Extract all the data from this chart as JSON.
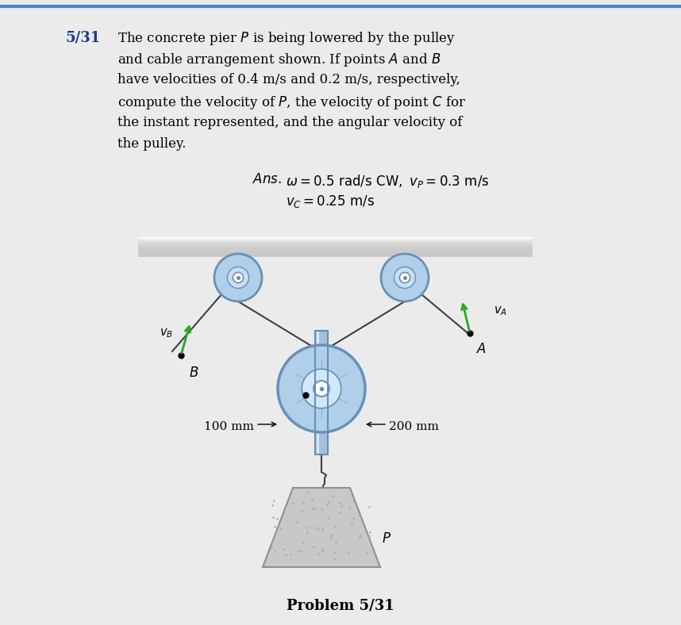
{
  "bg_color": "#ebebeb",
  "white": "#ffffff",
  "text_color": "#000000",
  "blue_num_color": "#1a3a8a",
  "pulley_blue": "#b0cfe8",
  "pulley_blue_mid": "#c8dff2",
  "pulley_rim": "#6890b8",
  "support_color": "#d0dde8",
  "support_rim": "#a0b0c0",
  "shaft_color": "#a8c0d8",
  "shaft_hi": "#d8eaf8",
  "cable_color": "#404040",
  "arrow_color": "#22aa22",
  "pier_fill": "#c8c8c8",
  "pier_edge": "#909090",
  "dot_color": "#aaaaaa",
  "label_100mm": "100 mm",
  "label_200mm": "200 mm",
  "problem_label": "Problem 5/31"
}
